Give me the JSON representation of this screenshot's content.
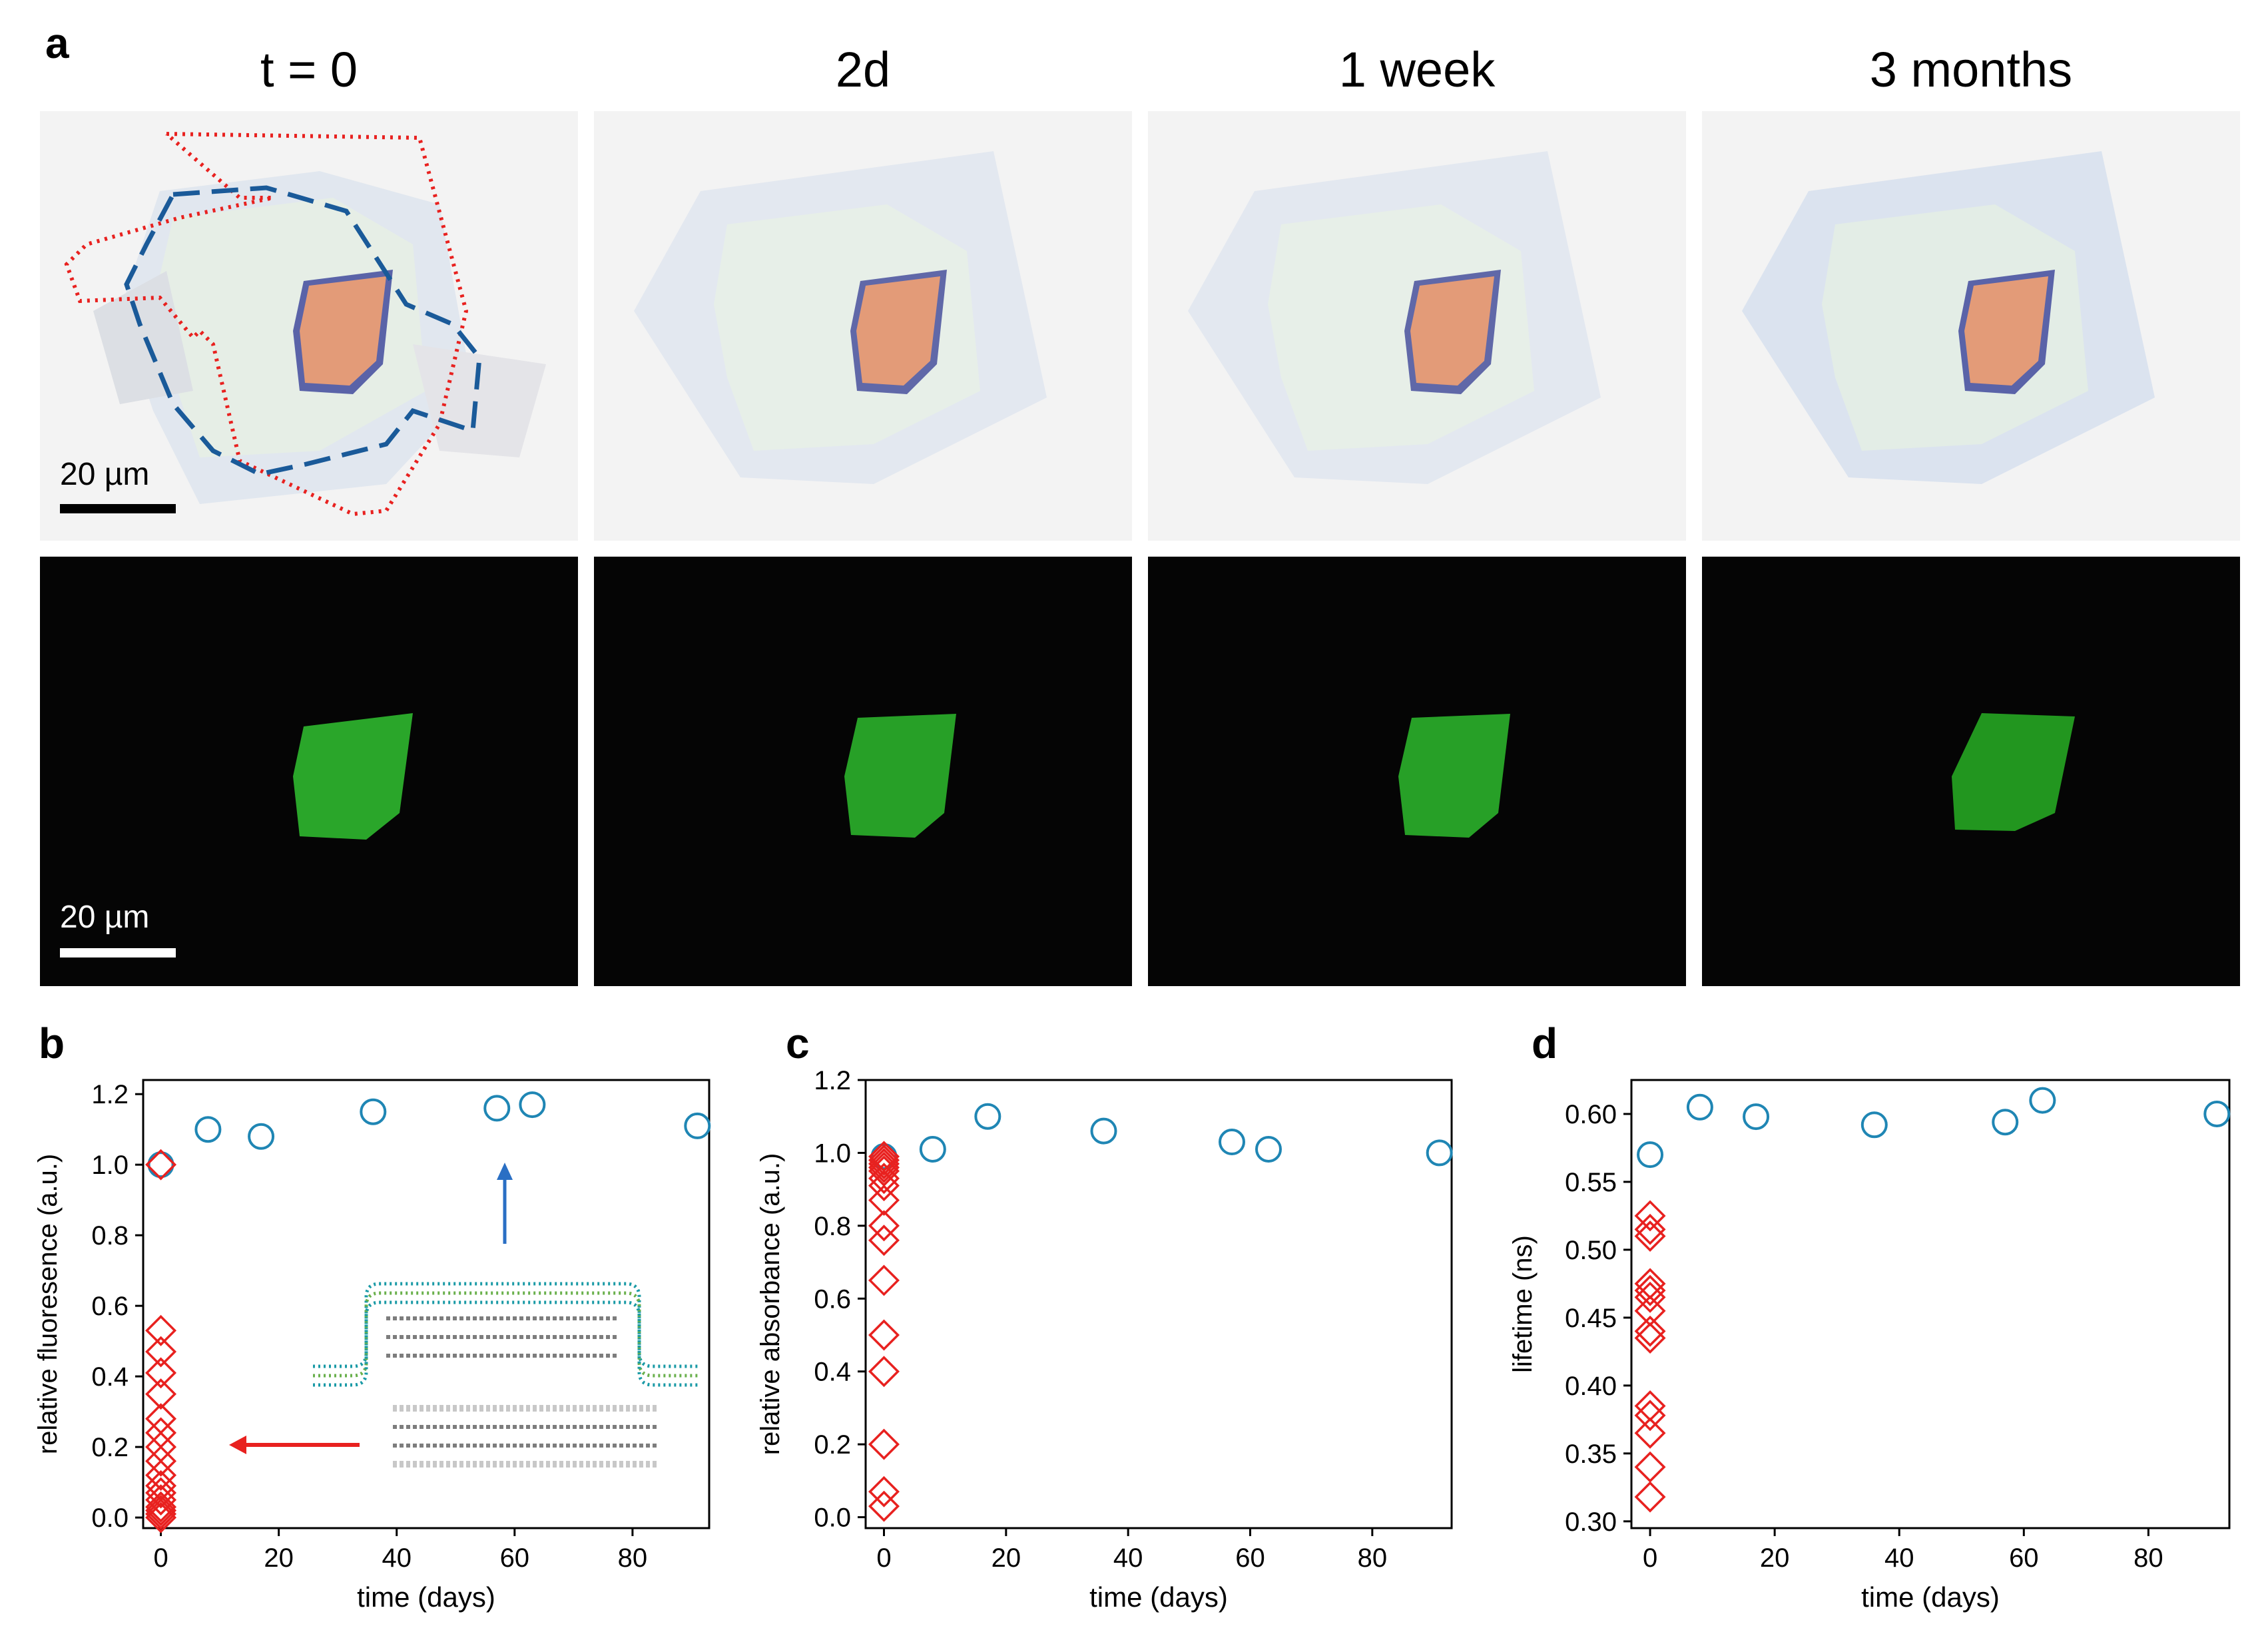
{
  "panel_a": {
    "letter": "a",
    "column_titles": [
      "t = 0",
      "2d",
      "1 week",
      "3 months"
    ],
    "scale_bar_label": "20 µm"
  },
  "panel_b": {
    "letter": "b"
  },
  "panel_c": {
    "letter": "c"
  },
  "panel_d": {
    "letter": "d"
  },
  "chart_data": [
    {
      "id": "b",
      "type": "scatter",
      "xlabel": "time (days)",
      "ylabel": "relative fluoresence (a.u.)",
      "xlim": [
        -3,
        93
      ],
      "ylim": [
        -0.03,
        1.24
      ],
      "xticks": [
        0,
        20,
        40,
        60,
        80
      ],
      "yticks": [
        0.0,
        0.2,
        0.4,
        0.6,
        0.8,
        1.0,
        1.2
      ],
      "grid": false,
      "series": [
        {
          "marker": "circle",
          "color": "#1f86b4",
          "x": [
            0,
            8,
            17,
            36,
            57,
            63,
            91
          ],
          "y": [
            1.0,
            1.1,
            1.08,
            1.15,
            1.16,
            1.17,
            1.11
          ]
        },
        {
          "marker": "diamond",
          "color": "#e8211f",
          "x": [
            0,
            0,
            0,
            0,
            0,
            0,
            0,
            0,
            0,
            0,
            0,
            0,
            0,
            0,
            0,
            0,
            0
          ],
          "y": [
            1.0,
            0.53,
            0.47,
            0.41,
            0.35,
            0.28,
            0.24,
            0.2,
            0.16,
            0.12,
            0.09,
            0.07,
            0.05,
            0.03,
            0.02,
            0.01,
            0.0
          ]
        }
      ]
    },
    {
      "id": "c",
      "type": "scatter",
      "xlabel": "time (days)",
      "ylabel": "relative absorbance (a.u.)",
      "xlim": [
        -3,
        93
      ],
      "ylim": [
        -0.03,
        1.2
      ],
      "xticks": [
        0,
        20,
        40,
        60,
        80
      ],
      "yticks": [
        0.0,
        0.2,
        0.4,
        0.6,
        0.8,
        1.0,
        1.2
      ],
      "grid": false,
      "series": [
        {
          "marker": "circle",
          "color": "#1f86b4",
          "x": [
            0,
            8,
            17,
            36,
            57,
            63,
            91
          ],
          "y": [
            0.99,
            1.01,
            1.1,
            1.06,
            1.03,
            1.01,
            1.0
          ]
        },
        {
          "marker": "diamond",
          "color": "#e8211f",
          "x": [
            0,
            0,
            0,
            0,
            0,
            0,
            0,
            0,
            0,
            0,
            0,
            0,
            0,
            0,
            0,
            0
          ],
          "y": [
            0.99,
            0.97,
            0.95,
            0.93,
            0.91,
            0.87,
            0.8,
            0.76,
            0.65,
            0.5,
            0.4,
            0.2,
            0.07,
            0.03,
            0.98,
            0.96
          ]
        }
      ]
    },
    {
      "id": "d",
      "type": "scatter",
      "xlabel": "time (days)",
      "ylabel": "lifetime (ns)",
      "xlim": [
        -3,
        93
      ],
      "ylim": [
        0.295,
        0.625
      ],
      "xticks": [
        0,
        20,
        40,
        60,
        80
      ],
      "yticks": [
        0.3,
        0.35,
        0.4,
        0.45,
        0.5,
        0.55,
        0.6
      ],
      "yticklabels": [
        "0.30",
        "0.35",
        "0.40",
        "0.45",
        "0.50",
        "0.55",
        "0.60"
      ],
      "grid": false,
      "series": [
        {
          "marker": "circle",
          "color": "#1f86b4",
          "x": [
            0,
            8,
            17,
            36,
            57,
            63,
            91
          ],
          "y": [
            0.57,
            0.605,
            0.598,
            0.592,
            0.594,
            0.61,
            0.6
          ]
        },
        {
          "marker": "diamond",
          "color": "#e8211f",
          "x": [
            0,
            0,
            0,
            0,
            0,
            0,
            0,
            0,
            0,
            0,
            0,
            0,
            0,
            0
          ],
          "y": [
            0.525,
            0.51,
            0.475,
            0.465,
            0.455,
            0.44,
            0.435,
            0.385,
            0.378,
            0.365,
            0.34,
            0.318,
            0.47,
            0.515
          ]
        }
      ]
    }
  ],
  "colors": {
    "blue_marker": "#1f86b4",
    "red_marker": "#e8211f",
    "outline_blue": "#1a5a99",
    "outline_red": "#e8211f",
    "fluorescence_green": "#2aa62a"
  }
}
